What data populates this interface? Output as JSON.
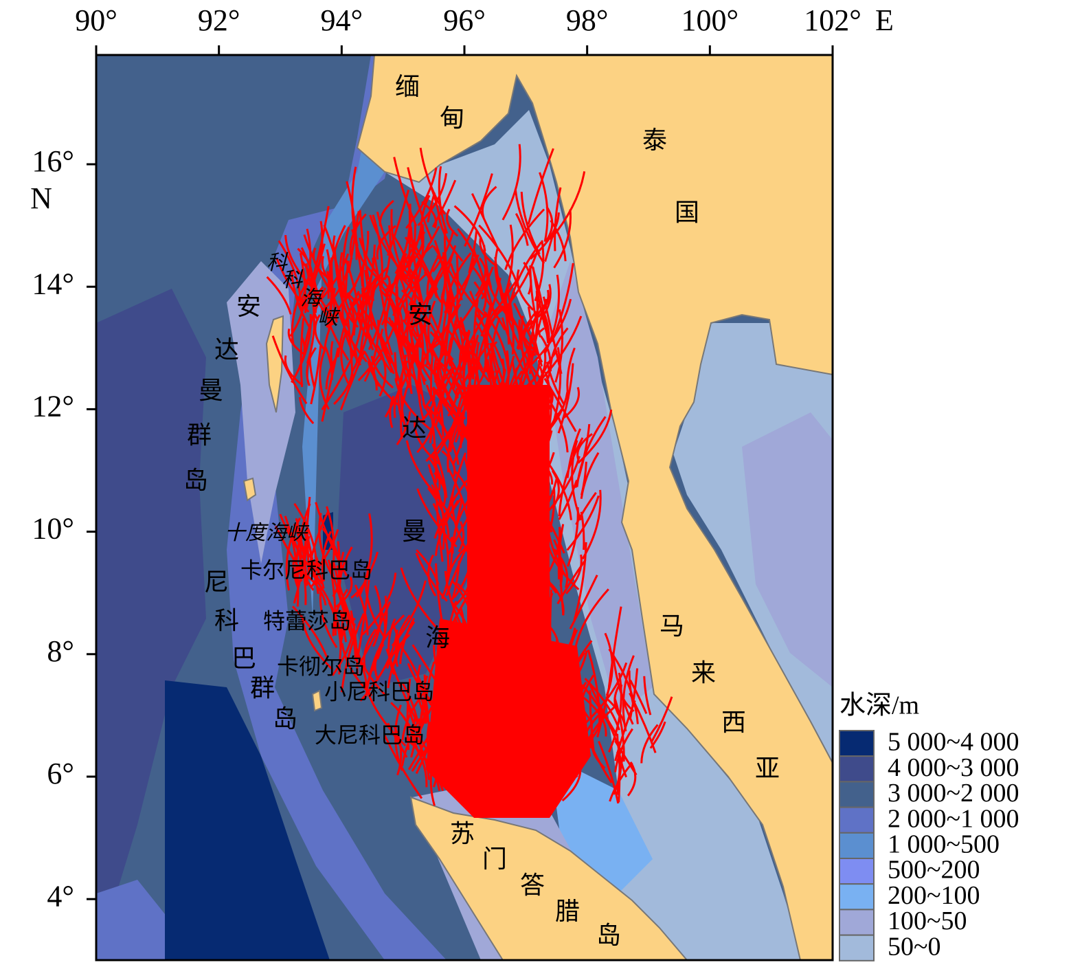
{
  "x_axis": {
    "ticks": [
      {
        "value": 90,
        "label": "90°"
      },
      {
        "value": 92,
        "label": "92°"
      },
      {
        "value": 94,
        "label": "94°"
      },
      {
        "value": 96,
        "label": "96°"
      },
      {
        "value": 98,
        "label": "98°"
      },
      {
        "value": 100,
        "label": "100°"
      },
      {
        "value": 102,
        "label": "102°"
      }
    ],
    "unit": "E"
  },
  "y_axis": {
    "ticks": [
      {
        "value": 4,
        "label": "4°"
      },
      {
        "value": 6,
        "label": "6°"
      },
      {
        "value": 8,
        "label": "8°"
      },
      {
        "value": 10,
        "label": "10°"
      },
      {
        "value": 12,
        "label": "12°"
      },
      {
        "value": 14,
        "label": "14°"
      },
      {
        "value": 16,
        "label": "16°"
      }
    ],
    "unit": "N"
  },
  "places": [
    "缅甸",
    "泰国",
    "科科海峡",
    "安达曼群岛",
    "安达曼海",
    "十度海峡",
    "卡尔尼科巴岛",
    "尼科巴群岛",
    "特蕾莎岛",
    "卡彻尔岛",
    "小尼科巴岛",
    "大尼科巴岛",
    "马来西亚",
    "苏门答腊岛"
  ],
  "legend": {
    "title": "水深/m",
    "items": [
      {
        "label": "5 000~4 000",
        "color": "#062a72"
      },
      {
        "label": "4 000~3 000",
        "color": "#3f4b8b"
      },
      {
        "label": "3 000~2 000",
        "color": "#43618c"
      },
      {
        "label": "2 000~1 000",
        "color": "#5f72c6"
      },
      {
        "label": "1 000~500",
        "color": "#5b8fd0"
      },
      {
        "label": "500~200",
        "color": "#7e8df2"
      },
      {
        "label": "200~100",
        "color": "#79b1f2"
      },
      {
        "label": "100~50",
        "color": "#a0a8d8"
      },
      {
        "label": "50~0",
        "color": "#a2badb"
      }
    ]
  }
}
